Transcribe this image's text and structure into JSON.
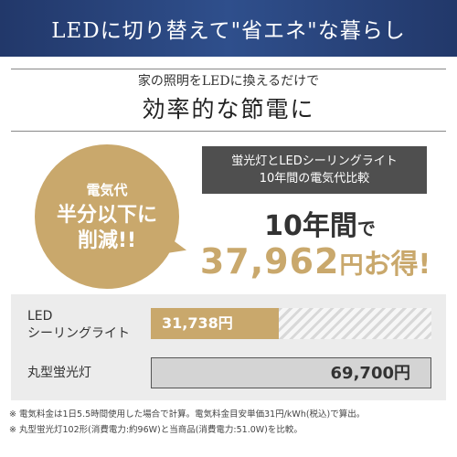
{
  "header": {
    "title": "LEDに切り替えて\"省エネ\"な暮らし"
  },
  "intro": {
    "subtitle": "家の照明をLEDに換えるだけで",
    "headline": "効率的な節電に"
  },
  "badge": {
    "line1": "電気代",
    "line2": "半分以下に",
    "line3": "削減!!"
  },
  "comparison": {
    "line1": "蛍光灯とLEDシーリングライト",
    "line2": "10年間の電気代比較"
  },
  "savings": {
    "years_num": "10",
    "years_unit": "年間",
    "years_suffix": "で",
    "amount": "37,962",
    "unit": "円",
    "gain": "お得!"
  },
  "chart_data": {
    "type": "bar",
    "categories": [
      "LED シーリングライト",
      "丸型蛍光灯"
    ],
    "values": [
      31738,
      69700
    ],
    "value_labels": [
      "31,738円",
      "69,700円"
    ]
  },
  "rows": {
    "led_label_1": "LED",
    "led_label_2": "シーリングライト",
    "fl_label": "丸型蛍光灯"
  },
  "notes": {
    "note1": "※ 電気料金は1日5.5時間使用した場合で計算。電気料金目安単価31円/kWh(税込)で算出。",
    "note2": "※ 丸型蛍光灯102形(消費電力:約96W)と当商品(消費電力:51.0W)を比較。"
  },
  "colors": {
    "header_bg": "#2f4f8c",
    "gold": "#c9a86c",
    "dark_box": "#4f4f4f"
  }
}
